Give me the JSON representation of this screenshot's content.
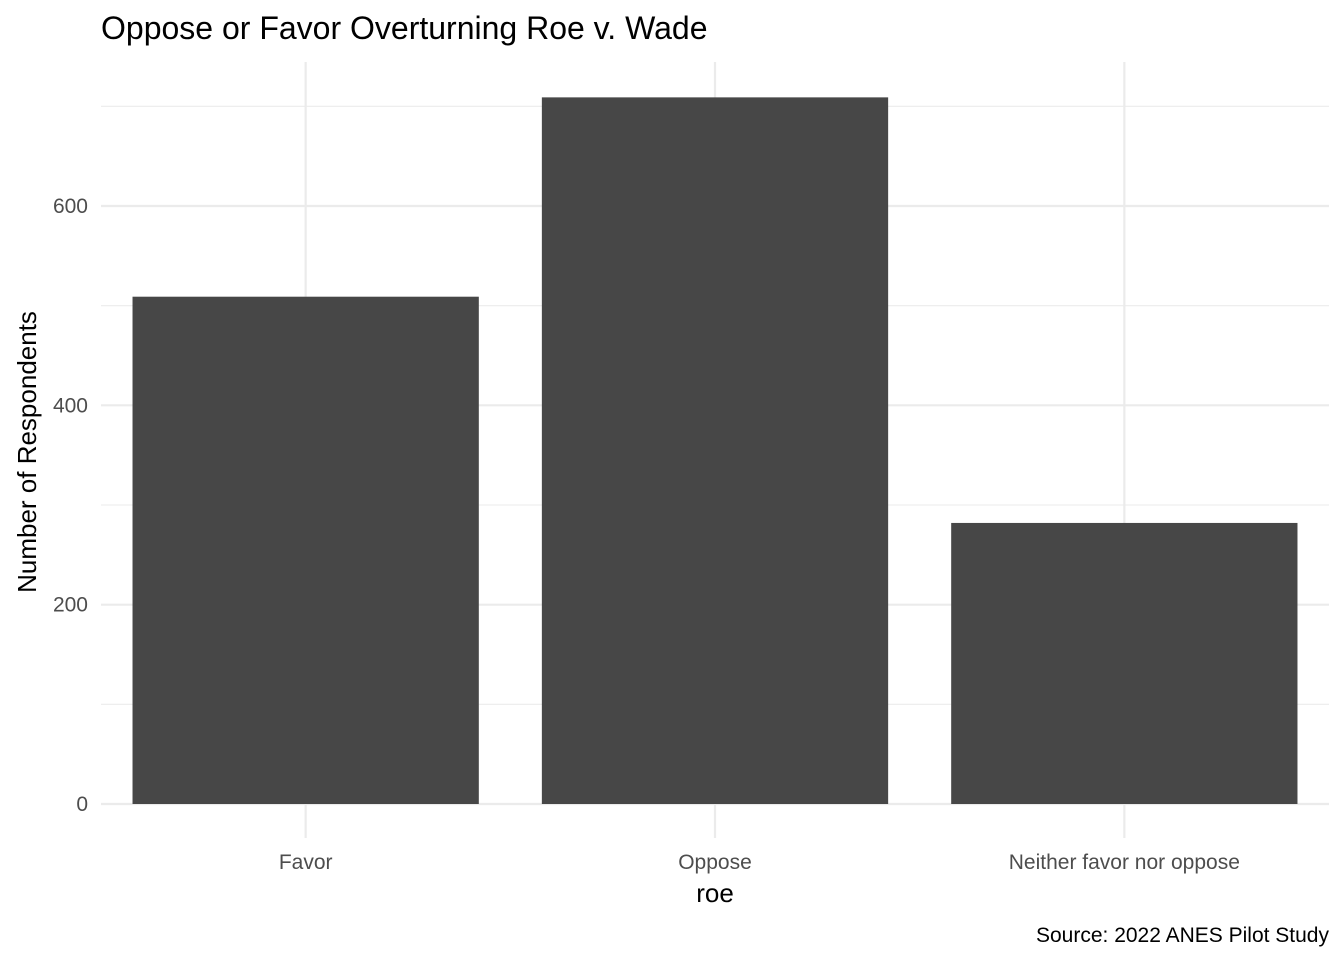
{
  "chart_data": {
    "type": "bar",
    "title": "Oppose or Favor Overturning Roe v. Wade",
    "xlabel": "roe",
    "ylabel": "Number of Respondents",
    "caption": "Source: 2022 ANES Pilot Study",
    "categories": [
      "Favor",
      "Oppose",
      "Neither favor nor oppose"
    ],
    "values": [
      509,
      709,
      282
    ],
    "ylim": [
      0,
      745
    ],
    "yticks": [
      0,
      200,
      400,
      600
    ],
    "ytick_labels": [
      "0",
      "200",
      "400",
      "600"
    ],
    "grid": true,
    "legend": "none",
    "bar_color": "#474747"
  }
}
